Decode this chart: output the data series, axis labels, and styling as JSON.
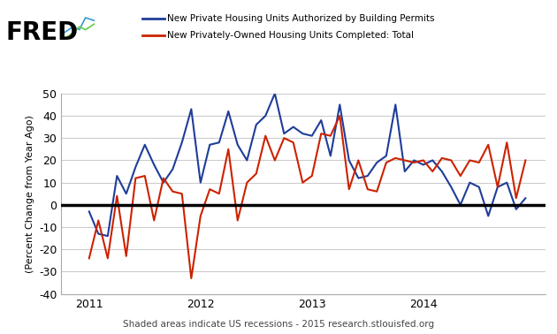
{
  "legend_blue": "New Private Housing Units Authorized by Building Permits",
  "legend_red": "New Privately-Owned Housing Units Completed: Total",
  "ylabel": "(Percent Change from Year Ago)",
  "footnote": "Shaded areas indicate US recessions - 2015 research.stlouisfed.org",
  "ylim": [
    -40,
    50
  ],
  "yticks": [
    -40,
    -30,
    -20,
    -10,
    0,
    10,
    20,
    30,
    40,
    50
  ],
  "background_color": "#ffffff",
  "plot_bg_color": "#ffffff",
  "grid_color": "#cccccc",
  "blue_color": "#1f3d99",
  "red_color": "#cc2200",
  "zero_line_color": "#000000",
  "blue_x": [
    2011.0,
    2011.083,
    2011.167,
    2011.25,
    2011.333,
    2011.417,
    2011.5,
    2011.583,
    2011.667,
    2011.75,
    2011.833,
    2011.917,
    2012.0,
    2012.083,
    2012.167,
    2012.25,
    2012.333,
    2012.417,
    2012.5,
    2012.583,
    2012.667,
    2012.75,
    2012.833,
    2012.917,
    2013.0,
    2013.083,
    2013.167,
    2013.25,
    2013.333,
    2013.417,
    2013.5,
    2013.583,
    2013.667,
    2013.75,
    2013.833,
    2013.917,
    2014.0,
    2014.083,
    2014.167,
    2014.25,
    2014.333,
    2014.417,
    2014.5,
    2014.583,
    2014.667,
    2014.75,
    2014.833,
    2014.917
  ],
  "blue_y": [
    -3,
    -13,
    -14,
    13,
    5,
    17,
    27,
    18,
    10,
    16,
    28,
    43,
    10,
    27,
    28,
    42,
    27,
    20,
    36,
    40,
    50,
    32,
    35,
    32,
    31,
    38,
    22,
    45,
    20,
    12,
    13,
    19,
    22,
    45,
    15,
    20,
    18,
    20,
    15,
    8,
    0,
    10,
    8,
    -5,
    8,
    10,
    -2,
    3
  ],
  "red_x": [
    2011.0,
    2011.083,
    2011.167,
    2011.25,
    2011.333,
    2011.417,
    2011.5,
    2011.583,
    2011.667,
    2011.75,
    2011.833,
    2011.917,
    2012.0,
    2012.083,
    2012.167,
    2012.25,
    2012.333,
    2012.417,
    2012.5,
    2012.583,
    2012.667,
    2012.75,
    2012.833,
    2012.917,
    2013.0,
    2013.083,
    2013.167,
    2013.25,
    2013.333,
    2013.417,
    2013.5,
    2013.583,
    2013.667,
    2013.75,
    2013.833,
    2013.917,
    2014.0,
    2014.083,
    2014.167,
    2014.25,
    2014.333,
    2014.417,
    2014.5,
    2014.583,
    2014.667,
    2014.75,
    2014.833,
    2014.917
  ],
  "red_y": [
    -24,
    -7,
    -24,
    4,
    -23,
    12,
    13,
    -7,
    12,
    6,
    5,
    -33,
    -5,
    7,
    5,
    25,
    -7,
    10,
    14,
    31,
    20,
    30,
    28,
    10,
    13,
    32,
    31,
    40,
    7,
    20,
    7,
    6,
    19,
    21,
    20,
    19,
    20,
    15,
    21,
    20,
    13,
    20,
    19,
    27,
    8,
    28,
    3,
    20
  ],
  "xticks": [
    2011,
    2012,
    2013,
    2014
  ],
  "xlim": [
    2010.75,
    2015.1
  ]
}
